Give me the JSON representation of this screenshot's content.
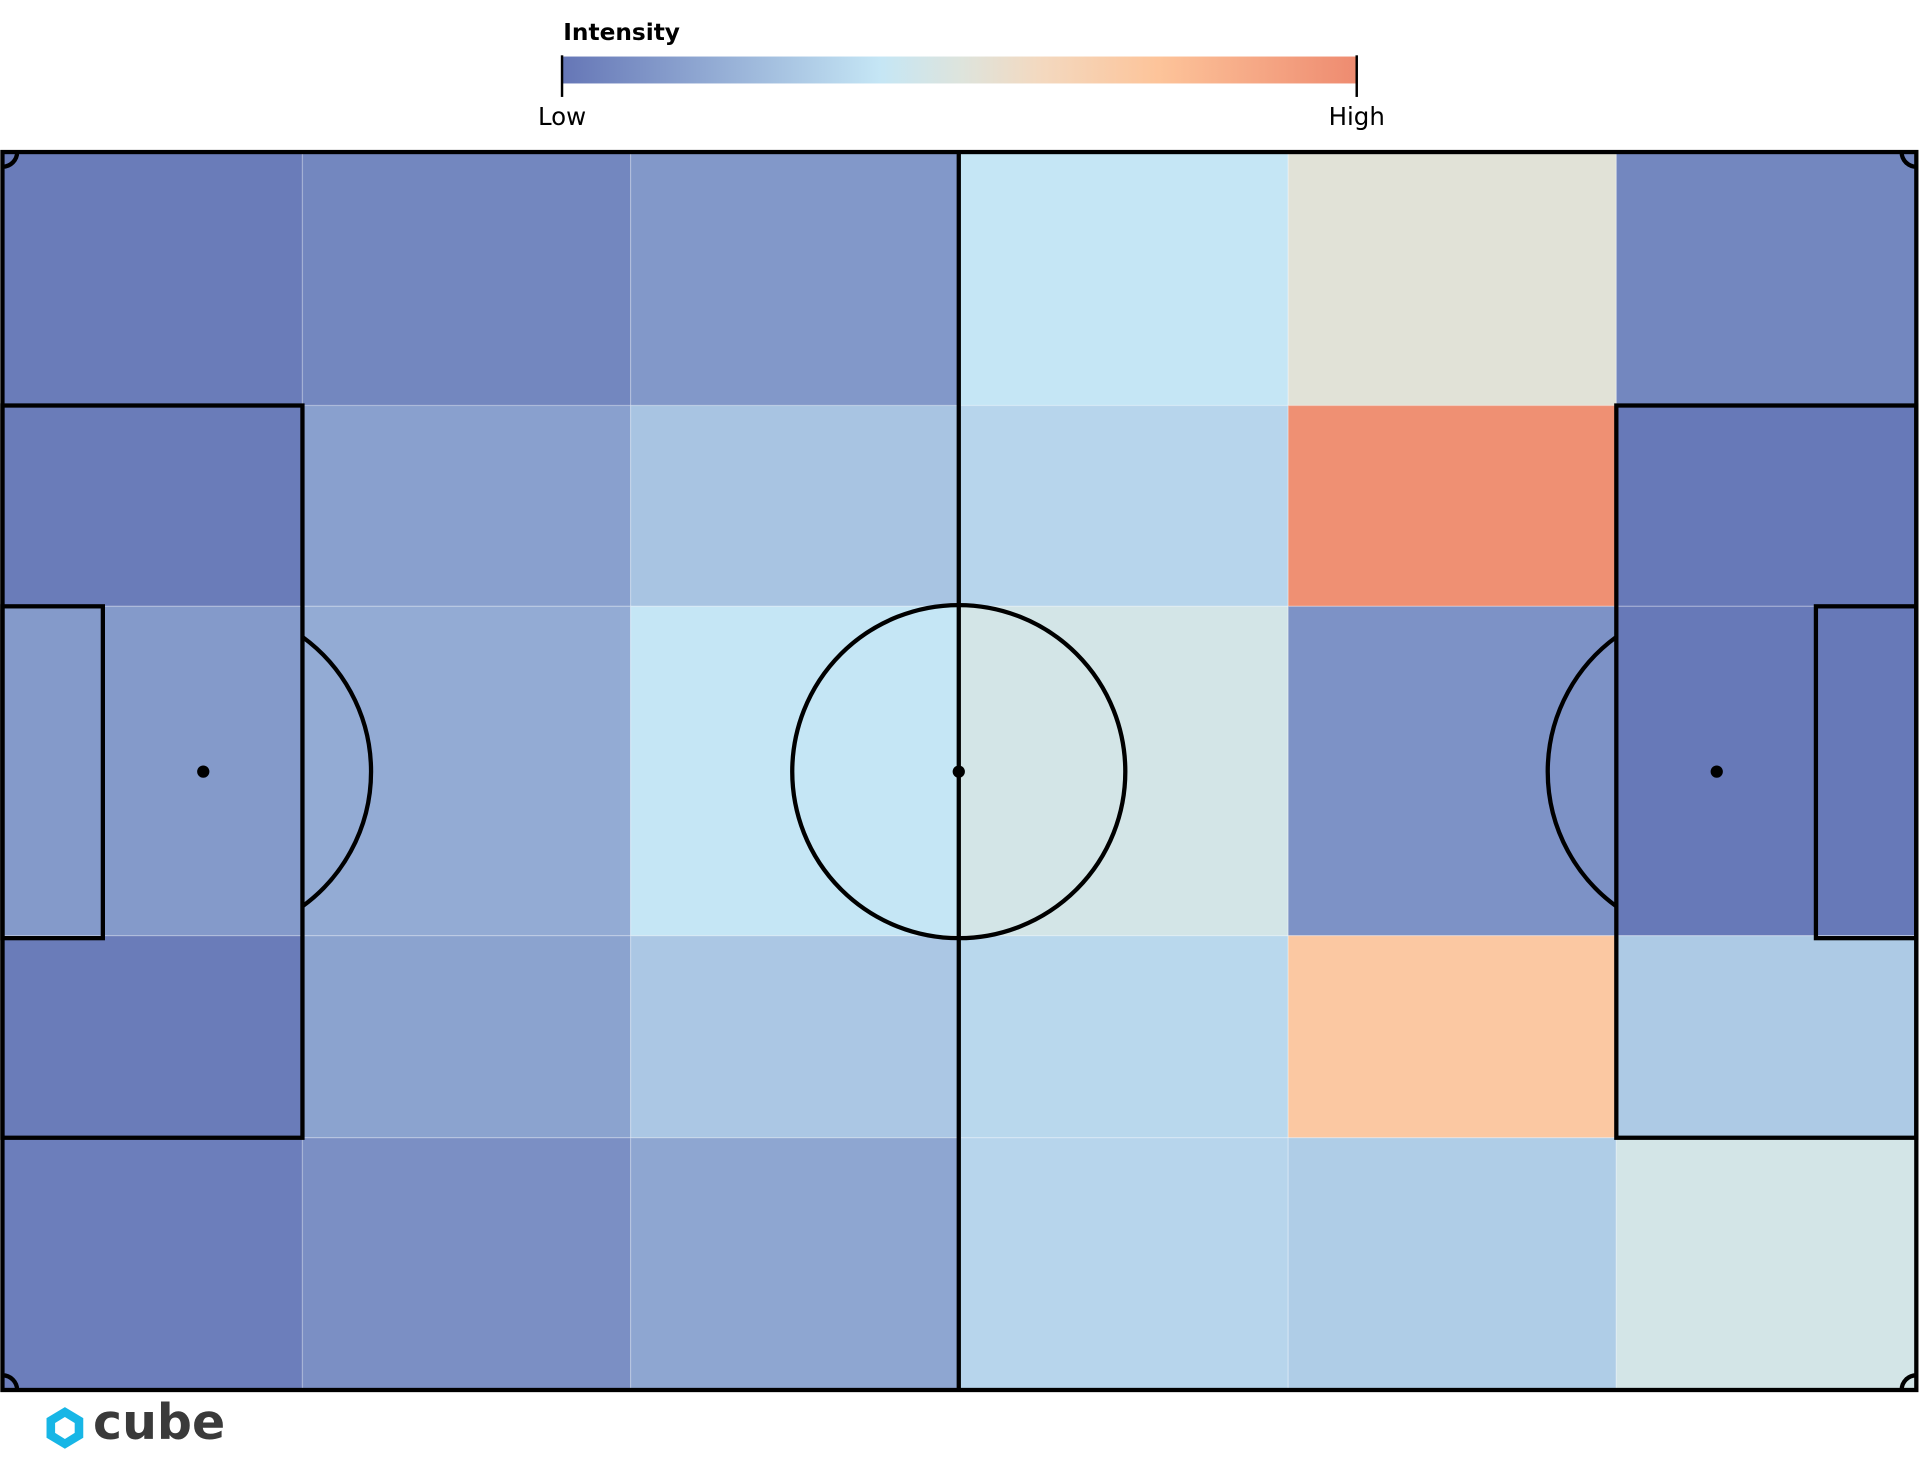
{
  "chart_data": {
    "type": "heatmap",
    "legend_title": "Intensity",
    "colorbar_ticks": [
      {
        "value": 0,
        "label": "Low"
      },
      {
        "value": 1,
        "label": "High"
      }
    ],
    "colorscale": [
      [
        0,
        "#6576b6"
      ],
      [
        0.4,
        "#c5e6f5"
      ],
      [
        0.5,
        "#dde4dd"
      ],
      [
        0.6,
        "#f3d9c0"
      ],
      [
        0.75,
        "#fdc49a"
      ],
      [
        1,
        "#ee8b70"
      ]
    ],
    "values": [
      [
        0.02,
        0.06,
        0.12,
        0.4,
        0.52,
        0.06
      ],
      [
        0.02,
        0.15,
        0.28,
        0.34,
        0.98,
        0.01
      ],
      [
        0.13,
        0.19,
        0.4,
        0.46,
        0.1,
        0.01
      ],
      [
        0.02,
        0.16,
        0.29,
        0.35,
        0.72,
        0.3
      ],
      [
        0.03,
        0.09,
        0.17,
        0.34,
        0.31,
        0.46
      ]
    ],
    "logo": "cube"
  }
}
